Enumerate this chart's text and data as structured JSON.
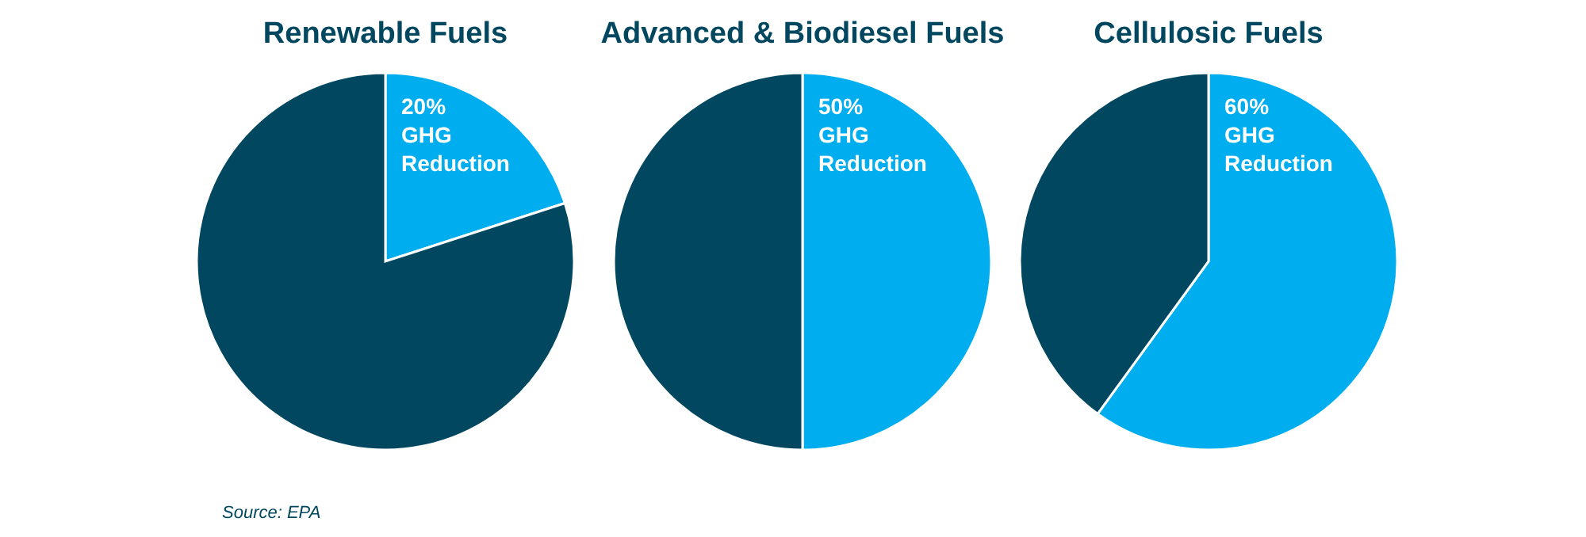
{
  "chart_data": [
    {
      "type": "pie",
      "title": "Renewable Fuels",
      "categories": [
        "GHG Reduction",
        null
      ],
      "values": [
        20,
        80
      ],
      "colors": [
        "#00aeef",
        "#00475f"
      ],
      "value_labels": [
        "20%",
        null
      ],
      "annotations": [
        "Source: EPA"
      ]
    },
    {
      "type": "pie",
      "title": "Advanced & Biodiesel Fuels",
      "categories": [
        "GHG Reduction",
        null
      ],
      "values": [
        50,
        50
      ],
      "colors": [
        "#00aeef",
        "#00475f"
      ],
      "value_labels": [
        "50%",
        null
      ]
    },
    {
      "type": "pie",
      "title": "Cellulosic Fuels",
      "categories": [
        "GHG Reduction",
        null
      ],
      "values": [
        60,
        40
      ],
      "colors": [
        "#00aeef",
        "#00475f"
      ],
      "value_labels": [
        "60%",
        null
      ]
    }
  ]
}
